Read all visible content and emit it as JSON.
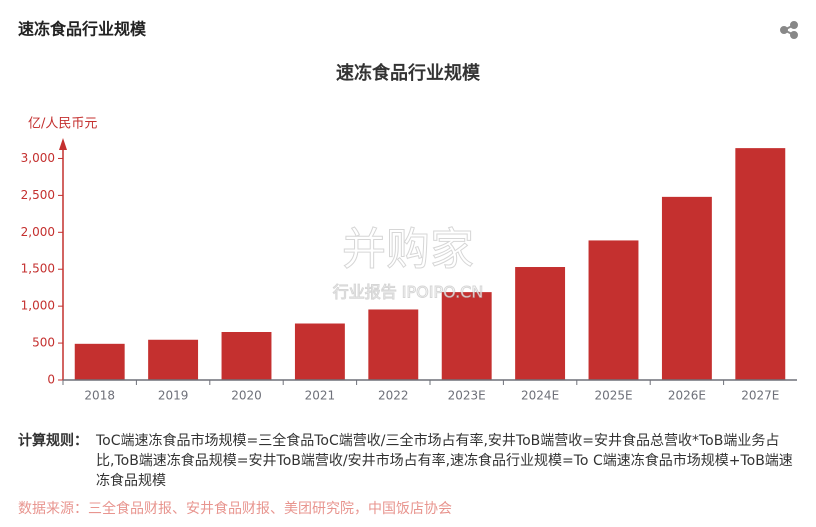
{
  "header": {
    "title": "速冻食品行业规模"
  },
  "chart_data": {
    "type": "bar",
    "title": "速冻食品行业规模",
    "y_label": "亿/人民币元",
    "categories": [
      "2018",
      "2019",
      "2020",
      "2021",
      "2022",
      "2023E",
      "2024E",
      "2025E",
      "2026E",
      "2027E"
    ],
    "values": [
      490,
      545,
      650,
      765,
      955,
      1190,
      1530,
      1890,
      2480,
      3140
    ],
    "color": "#c4302f",
    "ylim": [
      0,
      3250
    ],
    "yticks": [
      0,
      500,
      {
        "value": 1000,
        "label": "1,000"
      },
      {
        "value": 1500,
        "label": "1,500"
      },
      {
        "value": 2000,
        "label": "2,000"
      },
      {
        "value": 2500,
        "label": "2,500"
      },
      {
        "value": 3000,
        "label": "3,000"
      }
    ],
    "grid": false
  },
  "watermark": {
    "brand": "并购家",
    "sub": "行业报告 IPOIPO.CN"
  },
  "notes": {
    "label": "计算规则：",
    "text": "ToC端速冻食品市场规模=三全食品ToC端营收/三全市场占有率,安井ToB端营收=安井食品总营收*ToB端业务占比,ToB端速冻食品规模=安井ToB端营收/安井市场占有率,速冻食品行业规模=To C端速冻食品市场规模+ToB端速冻食品规模"
  },
  "source": {
    "label": "数据来源：",
    "text": "三全食品财报、安井食品财报、美团研究院，中国饭店协会"
  }
}
